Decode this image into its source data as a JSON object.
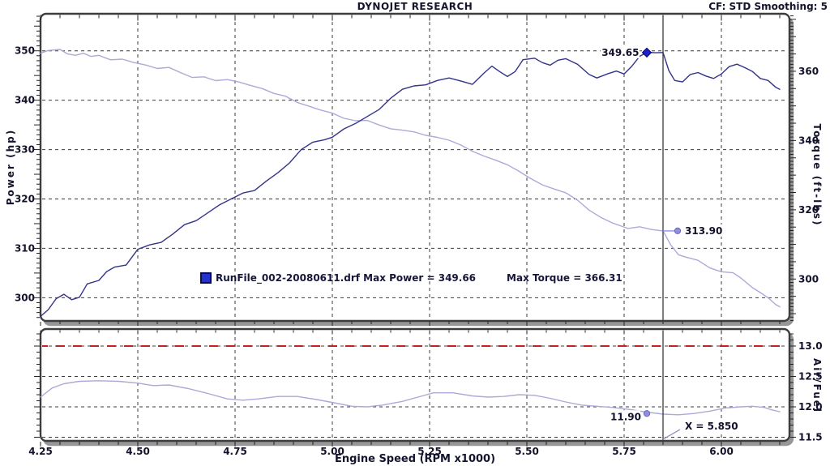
{
  "header": {
    "title": "DYNOJET RESEARCH",
    "correction": "CF: STD  Smoothing: 5"
  },
  "legend": {
    "swatch_icon": "legend-swatch",
    "swatch_color": "#2432cf",
    "run_label": "RunFile_002-20080611.drf Max Power = 349.66",
    "max_torque_label": "Max Torque = 366.31"
  },
  "cursor": {
    "x_value": 5.85,
    "x_label": "X = 5.850",
    "power_readout": "349.65",
    "torque_readout": "313.90",
    "af_readout": "11.90"
  },
  "colors": {
    "power_curve": "#33338a",
    "torque_curve": "#abaad8",
    "af_curve": "#abaad8",
    "af_target": "#c22222",
    "grid": "#1b1b1b",
    "frame": "#3d3d3d",
    "frame_shadow": "#979797",
    "cursor_line": "#3a3a3a",
    "power_marker": "#2020cc",
    "light_marker": "#8f8fe2",
    "text": "#12122a"
  },
  "chart_data": [
    {
      "type": "line",
      "title": "DYNOJET RESEARCH",
      "xlabel": "Engine Speed (RPM x1000)",
      "xlim": [
        4.25,
        6.175
      ],
      "x_ticks": [
        4.25,
        4.5,
        4.75,
        5.0,
        5.25,
        5.5,
        5.75,
        6.0
      ],
      "x_minor_step": 0.05,
      "grid": true,
      "axes": {
        "left": {
          "label": "Power (hp)",
          "ticks": [
            300,
            310,
            320,
            330,
            340,
            350
          ],
          "lim": [
            295.3,
            357.5
          ]
        },
        "right": {
          "label": "Torque (ft-lbs)",
          "ticks": [
            300,
            320,
            340,
            360
          ],
          "lim": [
            287.9,
            376.6
          ]
        }
      },
      "max_power": 349.66,
      "max_torque": 366.31,
      "series": [
        {
          "name": "power_hp",
          "axis": "left",
          "color": "#33338a",
          "points": [
            [
              4.25,
              296.2
            ],
            [
              4.27,
              297.6
            ],
            [
              4.29,
              299.8
            ],
            [
              4.31,
              300.7
            ],
            [
              4.33,
              299.6
            ],
            [
              4.35,
              300.1
            ],
            [
              4.37,
              302.8
            ],
            [
              4.4,
              303.5
            ],
            [
              4.42,
              305.3
            ],
            [
              4.44,
              306.2
            ],
            [
              4.47,
              306.6
            ],
            [
              4.5,
              309.8
            ],
            [
              4.53,
              310.7
            ],
            [
              4.56,
              311.2
            ],
            [
              4.59,
              312.9
            ],
            [
              4.62,
              314.8
            ],
            [
              4.65,
              315.6
            ],
            [
              4.68,
              317.2
            ],
            [
              4.71,
              318.8
            ],
            [
              4.74,
              320.0
            ],
            [
              4.77,
              321.2
            ],
            [
              4.8,
              321.7
            ],
            [
              4.83,
              323.6
            ],
            [
              4.86,
              325.3
            ],
            [
              4.89,
              327.3
            ],
            [
              4.92,
              330.0
            ],
            [
              4.95,
              331.5
            ],
            [
              4.98,
              332.0
            ],
            [
              5.0,
              332.5
            ],
            [
              5.03,
              334.2
            ],
            [
              5.06,
              335.3
            ],
            [
              5.09,
              336.7
            ],
            [
              5.12,
              338.1
            ],
            [
              5.15,
              340.4
            ],
            [
              5.18,
              342.2
            ],
            [
              5.21,
              342.9
            ],
            [
              5.24,
              343.1
            ],
            [
              5.27,
              344.0
            ],
            [
              5.3,
              344.5
            ],
            [
              5.33,
              343.9
            ],
            [
              5.36,
              343.2
            ],
            [
              5.39,
              345.5
            ],
            [
              5.41,
              346.9
            ],
            [
              5.43,
              345.8
            ],
            [
              5.45,
              344.8
            ],
            [
              5.47,
              345.8
            ],
            [
              5.49,
              348.2
            ],
            [
              5.52,
              348.5
            ],
            [
              5.54,
              347.6
            ],
            [
              5.56,
              347.1
            ],
            [
              5.58,
              348.1
            ],
            [
              5.6,
              348.4
            ],
            [
              5.63,
              347.3
            ],
            [
              5.66,
              345.2
            ],
            [
              5.68,
              344.5
            ],
            [
              5.71,
              345.4
            ],
            [
              5.73,
              345.9
            ],
            [
              5.75,
              345.3
            ],
            [
              5.77,
              346.9
            ],
            [
              5.79,
              348.9
            ],
            [
              5.81,
              349.7
            ],
            [
              5.83,
              349.6
            ],
            [
              5.85,
              349.65
            ],
            [
              5.865,
              346.0
            ],
            [
              5.88,
              344.0
            ],
            [
              5.9,
              343.7
            ],
            [
              5.92,
              345.2
            ],
            [
              5.94,
              345.6
            ],
            [
              5.96,
              344.9
            ],
            [
              5.98,
              344.4
            ],
            [
              6.0,
              345.3
            ],
            [
              6.02,
              346.8
            ],
            [
              6.04,
              347.3
            ],
            [
              6.06,
              346.6
            ],
            [
              6.08,
              345.8
            ],
            [
              6.1,
              344.4
            ],
            [
              6.12,
              344.0
            ],
            [
              6.14,
              342.6
            ],
            [
              6.15,
              342.2
            ]
          ]
        },
        {
          "name": "torque_ftlbs",
          "axis": "right",
          "color": "#abaad8",
          "points": [
            [
              4.25,
              365.2
            ],
            [
              4.27,
              366.0
            ],
            [
              4.3,
              366.3
            ],
            [
              4.32,
              365.0
            ],
            [
              4.34,
              364.6
            ],
            [
              4.36,
              365.2
            ],
            [
              4.38,
              364.3
            ],
            [
              4.4,
              364.6
            ],
            [
              4.43,
              363.3
            ],
            [
              4.46,
              363.5
            ],
            [
              4.49,
              362.5
            ],
            [
              4.52,
              361.8
            ],
            [
              4.55,
              360.8
            ],
            [
              4.58,
              361.1
            ],
            [
              4.61,
              359.6
            ],
            [
              4.64,
              358.2
            ],
            [
              4.67,
              358.4
            ],
            [
              4.7,
              357.3
            ],
            [
              4.73,
              357.6
            ],
            [
              4.76,
              356.9
            ],
            [
              4.79,
              355.9
            ],
            [
              4.82,
              355.0
            ],
            [
              4.85,
              353.6
            ],
            [
              4.88,
              352.8
            ],
            [
              4.91,
              351.0
            ],
            [
              4.94,
              349.9
            ],
            [
              4.97,
              348.8
            ],
            [
              5.0,
              347.9
            ],
            [
              5.03,
              346.4
            ],
            [
              5.06,
              345.7
            ],
            [
              5.09,
              345.8
            ],
            [
              5.12,
              344.5
            ],
            [
              5.15,
              343.4
            ],
            [
              5.18,
              343.0
            ],
            [
              5.21,
              342.5
            ],
            [
              5.24,
              341.5
            ],
            [
              5.27,
              340.9
            ],
            [
              5.3,
              340.1
            ],
            [
              5.33,
              338.7
            ],
            [
              5.36,
              336.9
            ],
            [
              5.39,
              335.5
            ],
            [
              5.42,
              334.3
            ],
            [
              5.45,
              333.0
            ],
            [
              5.48,
              331.1
            ],
            [
              5.51,
              329.0
            ],
            [
              5.54,
              327.2
            ],
            [
              5.57,
              326.0
            ],
            [
              5.6,
              324.9
            ],
            [
              5.63,
              322.8
            ],
            [
              5.66,
              319.9
            ],
            [
              5.69,
              317.8
            ],
            [
              5.72,
              316.2
            ],
            [
              5.74,
              315.4
            ],
            [
              5.76,
              314.6
            ],
            [
              5.79,
              315.1
            ],
            [
              5.82,
              314.3
            ],
            [
              5.85,
              313.9
            ],
            [
              5.87,
              309.8
            ],
            [
              5.89,
              307.0
            ],
            [
              5.91,
              306.3
            ],
            [
              5.94,
              305.4
            ],
            [
              5.97,
              303.2
            ],
            [
              6.0,
              302.1
            ],
            [
              6.03,
              301.8
            ],
            [
              6.05,
              300.3
            ],
            [
              6.08,
              297.5
            ],
            [
              6.1,
              296.1
            ],
            [
              6.12,
              294.6
            ],
            [
              6.14,
              292.6
            ],
            [
              6.15,
              292.0
            ]
          ]
        }
      ]
    },
    {
      "type": "line",
      "xlim": [
        4.25,
        6.175
      ],
      "grid": true,
      "axes": {
        "right": {
          "label": "Air/Fuel",
          "ticks": [
            11.5,
            12.0,
            12.5,
            13.0
          ],
          "lim": [
            11.44,
            13.28
          ]
        }
      },
      "target_line": {
        "value": 13.0,
        "color": "#c22222"
      },
      "series": [
        {
          "name": "air_fuel",
          "axis": "right",
          "color": "#abaad8",
          "points": [
            [
              4.25,
              12.16
            ],
            [
              4.28,
              12.31
            ],
            [
              4.31,
              12.38
            ],
            [
              4.35,
              12.42
            ],
            [
              4.4,
              12.43
            ],
            [
              4.45,
              12.42
            ],
            [
              4.5,
              12.39
            ],
            [
              4.54,
              12.35
            ],
            [
              4.58,
              12.36
            ],
            [
              4.63,
              12.3
            ],
            [
              4.68,
              12.22
            ],
            [
              4.73,
              12.13
            ],
            [
              4.77,
              12.11
            ],
            [
              4.81,
              12.13
            ],
            [
              4.86,
              12.17
            ],
            [
              4.91,
              12.17
            ],
            [
              4.96,
              12.12
            ],
            [
              5.01,
              12.06
            ],
            [
              5.05,
              12.01
            ],
            [
              5.09,
              12.0
            ],
            [
              5.13,
              12.03
            ],
            [
              5.18,
              12.09
            ],
            [
              5.22,
              12.16
            ],
            [
              5.26,
              12.23
            ],
            [
              5.31,
              12.23
            ],
            [
              5.36,
              12.18
            ],
            [
              5.4,
              12.16
            ],
            [
              5.44,
              12.17
            ],
            [
              5.48,
              12.2
            ],
            [
              5.52,
              12.19
            ],
            [
              5.56,
              12.14
            ],
            [
              5.6,
              12.08
            ],
            [
              5.64,
              12.03
            ],
            [
              5.68,
              12.01
            ],
            [
              5.72,
              11.99
            ],
            [
              5.76,
              11.96
            ],
            [
              5.8,
              11.92
            ],
            [
              5.85,
              11.88
            ],
            [
              5.89,
              11.87
            ],
            [
              5.93,
              11.89
            ],
            [
              5.97,
              11.93
            ],
            [
              6.01,
              11.98
            ],
            [
              6.05,
              12.0
            ],
            [
              6.08,
              12.01
            ],
            [
              6.11,
              11.99
            ],
            [
              6.13,
              11.95
            ],
            [
              6.15,
              11.92
            ]
          ]
        }
      ]
    }
  ]
}
